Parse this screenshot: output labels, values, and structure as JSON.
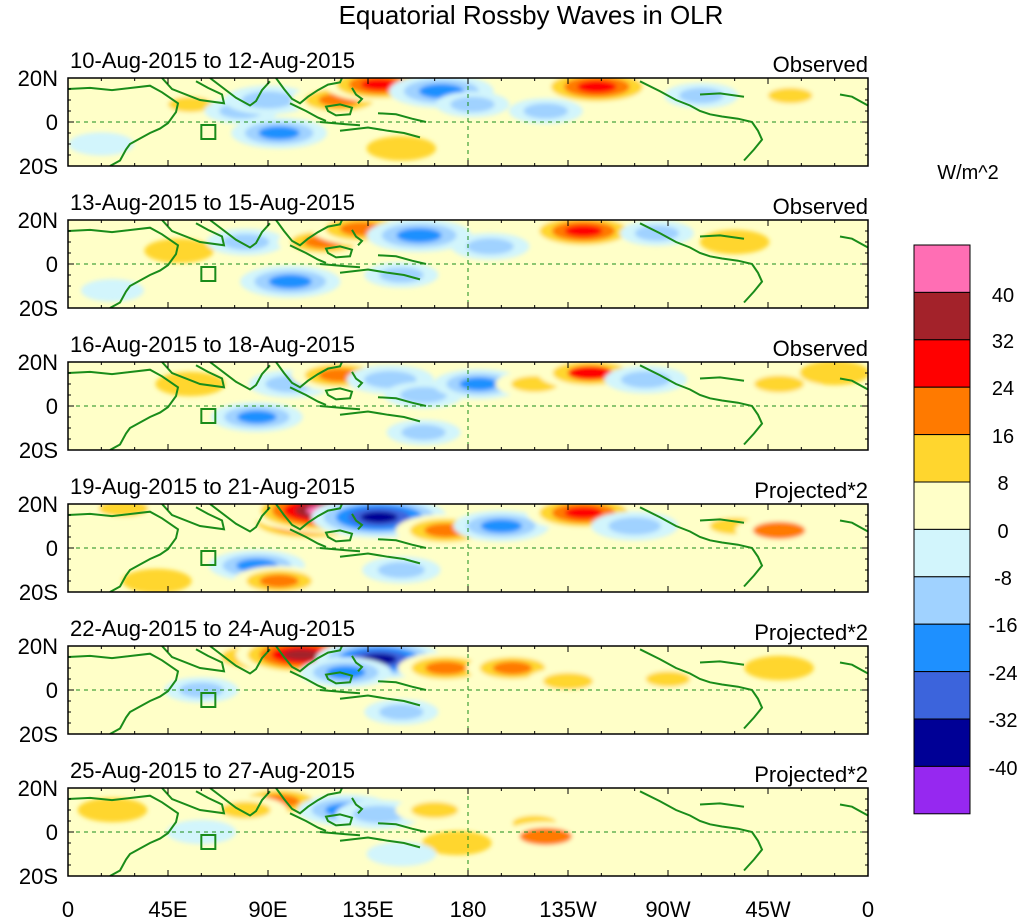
{
  "title": "Equatorial Rossby Waves in OLR",
  "units": "W/m^2",
  "lat_labels": [
    "20N",
    "0",
    "20S"
  ],
  "lon_labels": [
    "0",
    "45E",
    "90E",
    "135E",
    "180",
    "135W",
    "90W",
    "45W",
    "0"
  ],
  "colorbar": {
    "tick_labels": [
      "40",
      "32",
      "24",
      "16",
      "8",
      "0",
      "-8",
      "-16",
      "-24",
      "-32",
      "-40"
    ],
    "colors": [
      "#ff6eb4",
      "#a3222a",
      "#ff0000",
      "#ff7a00",
      "#ffd62e",
      "#ffffc8",
      "#d2f5fc",
      "#a0d2ff",
      "#1e90ff",
      "#3c64dc",
      "#000096",
      "#9628f0"
    ]
  },
  "panels": [
    {
      "date_range": "10-Aug-2015 to 12-Aug-2015",
      "type": "Observed"
    },
    {
      "date_range": "13-Aug-2015 to 15-Aug-2015",
      "type": "Observed"
    },
    {
      "date_range": "16-Aug-2015 to 18-Aug-2015",
      "type": "Observed"
    },
    {
      "date_range": "19-Aug-2015 to 21-Aug-2015",
      "type": "Projected*2"
    },
    {
      "date_range": "22-Aug-2015 to 24-Aug-2015",
      "type": "Projected*2"
    },
    {
      "date_range": "25-Aug-2015 to 27-Aug-2015",
      "type": "Projected*2"
    }
  ],
  "anomalies": [
    [
      {
        "lon": 55,
        "lat": 8,
        "v": 10
      },
      {
        "lon": 78,
        "lat": 5,
        "v": -10
      },
      {
        "lon": 95,
        "lat": -5,
        "v": -20
      },
      {
        "lon": 90,
        "lat": 10,
        "v": -16
      },
      {
        "lon": 122,
        "lat": 10,
        "v": 20
      },
      {
        "lon": 140,
        "lat": 17,
        "v": 26
      },
      {
        "lon": 168,
        "lat": 14,
        "v": -24
      },
      {
        "lon": 182,
        "lat": 8,
        "v": -10
      },
      {
        "lon": 238,
        "lat": 16,
        "v": 30
      },
      {
        "lon": 215,
        "lat": 5,
        "v": -10
      },
      {
        "lon": 285,
        "lat": 12,
        "v": -10
      },
      {
        "lon": 325,
        "lat": 12,
        "v": 10
      },
      {
        "lon": 150,
        "lat": -12,
        "v": 8
      },
      {
        "lon": 250,
        "lat": -8,
        "v": 4
      },
      {
        "lon": 15,
        "lat": -10,
        "v": -6
      }
    ],
    [
      {
        "lon": 50,
        "lat": 6,
        "v": 8
      },
      {
        "lon": 80,
        "lat": 10,
        "v": -12
      },
      {
        "lon": 100,
        "lat": -8,
        "v": -22
      },
      {
        "lon": 115,
        "lat": 10,
        "v": 18
      },
      {
        "lon": 132,
        "lat": 16,
        "v": 22
      },
      {
        "lon": 158,
        "lat": 13,
        "v": -24
      },
      {
        "lon": 190,
        "lat": 8,
        "v": -12
      },
      {
        "lon": 232,
        "lat": 15,
        "v": 28
      },
      {
        "lon": 265,
        "lat": 14,
        "v": -10
      },
      {
        "lon": 150,
        "lat": -5,
        "v": -10
      },
      {
        "lon": 300,
        "lat": 10,
        "v": 8
      },
      {
        "lon": 20,
        "lat": -12,
        "v": -5
      }
    ],
    [
      {
        "lon": 55,
        "lat": 10,
        "v": 8
      },
      {
        "lon": 85,
        "lat": -5,
        "v": -18
      },
      {
        "lon": 100,
        "lat": 10,
        "v": -14
      },
      {
        "lon": 122,
        "lat": 14,
        "v": 20
      },
      {
        "lon": 145,
        "lat": 12,
        "v": -16
      },
      {
        "lon": 160,
        "lat": 5,
        "v": -12
      },
      {
        "lon": 185,
        "lat": 10,
        "v": -18
      },
      {
        "lon": 210,
        "lat": 10,
        "v": 12
      },
      {
        "lon": 235,
        "lat": 15,
        "v": 24
      },
      {
        "lon": 260,
        "lat": 12,
        "v": -14
      },
      {
        "lon": 320,
        "lat": 10,
        "v": 14
      },
      {
        "lon": 345,
        "lat": 15,
        "v": 8
      },
      {
        "lon": 160,
        "lat": -12,
        "v": -10
      }
    ],
    [
      {
        "lon": 25,
        "lat": 18,
        "v": 14
      },
      {
        "lon": 85,
        "lat": -8,
        "v": -20
      },
      {
        "lon": 95,
        "lat": -15,
        "v": 18
      },
      {
        "lon": 108,
        "lat": 12,
        "v": 34
      },
      {
        "lon": 115,
        "lat": 17,
        "v": 44
      },
      {
        "lon": 140,
        "lat": 14,
        "v": -38
      },
      {
        "lon": 170,
        "lat": 8,
        "v": 22
      },
      {
        "lon": 195,
        "lat": 10,
        "v": -20
      },
      {
        "lon": 232,
        "lat": 16,
        "v": 28
      },
      {
        "lon": 255,
        "lat": 10,
        "v": -16
      },
      {
        "lon": 300,
        "lat": 10,
        "v": 14
      },
      {
        "lon": 320,
        "lat": 8,
        "v": 16
      },
      {
        "lon": 150,
        "lat": -10,
        "v": -12
      },
      {
        "lon": 40,
        "lat": -15,
        "v": 8
      }
    ],
    [
      {
        "lon": 85,
        "lat": 15,
        "v": 22
      },
      {
        "lon": 105,
        "lat": 16,
        "v": 36
      },
      {
        "lon": 140,
        "lat": 14,
        "v": -34
      },
      {
        "lon": 125,
        "lat": 8,
        "v": -18
      },
      {
        "lon": 170,
        "lat": 10,
        "v": 20
      },
      {
        "lon": 200,
        "lat": 10,
        "v": 18
      },
      {
        "lon": 225,
        "lat": 4,
        "v": 14
      },
      {
        "lon": 270,
        "lat": 5,
        "v": 10
      },
      {
        "lon": 60,
        "lat": 0,
        "v": -10
      },
      {
        "lon": 150,
        "lat": -10,
        "v": -10
      },
      {
        "lon": 320,
        "lat": 10,
        "v": 8
      }
    ],
    [
      {
        "lon": 95,
        "lat": 14,
        "v": 20
      },
      {
        "lon": 80,
        "lat": 10,
        "v": 14
      },
      {
        "lon": 125,
        "lat": 10,
        "v": -20
      },
      {
        "lon": 140,
        "lat": 8,
        "v": -16
      },
      {
        "lon": 165,
        "lat": 10,
        "v": 12
      },
      {
        "lon": 210,
        "lat": 4,
        "v": 10
      },
      {
        "lon": 215,
        "lat": -2,
        "v": 16
      },
      {
        "lon": 175,
        "lat": -5,
        "v": 8
      },
      {
        "lon": 60,
        "lat": 0,
        "v": -8
      },
      {
        "lon": 150,
        "lat": -10,
        "v": -8
      },
      {
        "lon": 20,
        "lat": 10,
        "v": 8
      }
    ]
  ]
}
